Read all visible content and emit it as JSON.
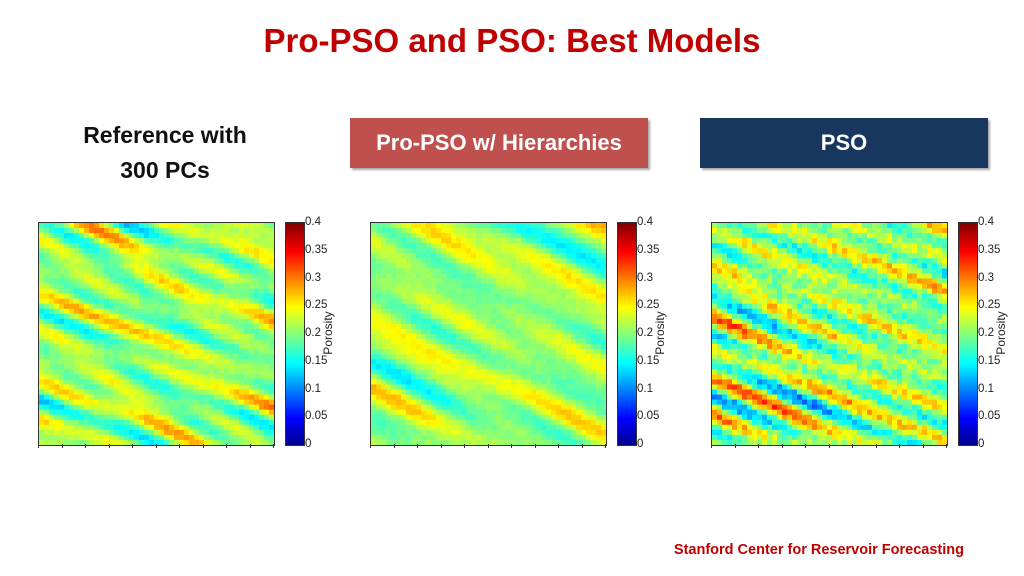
{
  "slide": {
    "title": "Pro-PSO and PSO: Best Models",
    "reference_label_line1": "Reference with",
    "reference_label_line2": "300 PCs",
    "pro_pso_label": "Pro-PSO w/ Hierarchies",
    "pso_label": "PSO",
    "footer": "Stanford Center for Reservoir Forecasting",
    "colors": {
      "title": "#c00000",
      "pro_pso_button": "#c0504d",
      "pso_button": "#17375e",
      "footer": "#c00000"
    }
  },
  "colorbar": {
    "label": "Porosity",
    "colormap": "jet",
    "ticks": [
      "0.4",
      "0.35",
      "0.3",
      "0.25",
      "0.2",
      "0.15",
      "0.1",
      "0.05",
      "0"
    ],
    "range": [
      0,
      0.4
    ]
  },
  "chart_data": [
    {
      "type": "heatmap",
      "name": "Reference with 300 PCs",
      "colorbar_label": "Porosity",
      "value_range": [
        0,
        0.4
      ],
      "mean_porosity": 0.2,
      "orientation": "diagonal bands, lower-left to upper-right"
    },
    {
      "type": "heatmap",
      "name": "Pro-PSO w/ Hierarchies",
      "colorbar_label": "Porosity",
      "value_range": [
        0,
        0.4
      ],
      "mean_porosity": 0.2,
      "orientation": "diagonal bands, lower-left to upper-right"
    },
    {
      "type": "heatmap",
      "name": "PSO",
      "colorbar_label": "Porosity",
      "value_range": [
        0,
        0.4
      ],
      "mean_porosity": 0.2,
      "orientation": "diagonal bands, lower-left to upper-right"
    }
  ]
}
